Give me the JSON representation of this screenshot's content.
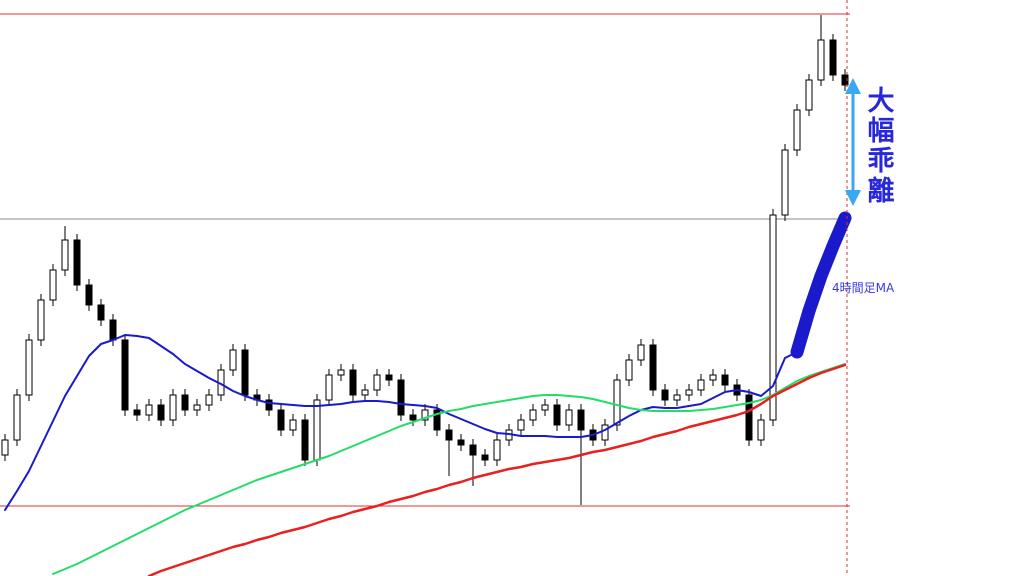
{
  "chart_data": {
    "type": "candlestick",
    "ylim": [
      0,
      576
    ],
    "open": [
      121,
      136,
      181,
      236,
      276,
      306,
      336,
      291,
      271,
      256,
      236,
      166,
      161,
      171,
      156,
      181,
      166,
      171,
      181,
      206,
      226,
      181,
      176,
      166,
      146,
      156,
      116,
      176,
      201,
      206,
      181,
      186,
      201,
      196,
      161,
      156,
      166,
      146,
      136,
      131,
      121,
      116,
      136,
      146,
      156,
      166,
      171,
      151,
      166,
      146,
      136,
      151,
      196,
      216,
      231,
      186,
      176,
      181,
      186,
      196,
      201,
      191,
      181,
      136,
      156,
      361,
      426,
      466,
      496,
      536,
      501
    ],
    "high": [
      142,
      187,
      242,
      282,
      312,
      350,
      342,
      297,
      277,
      262,
      242,
      172,
      177,
      177,
      187,
      187,
      177,
      187,
      212,
      232,
      232,
      187,
      182,
      172,
      162,
      162,
      182,
      207,
      212,
      212,
      192,
      207,
      207,
      202,
      167,
      172,
      172,
      152,
      142,
      137,
      127,
      142,
      152,
      162,
      172,
      177,
      177,
      172,
      172,
      152,
      157,
      202,
      222,
      237,
      237,
      192,
      187,
      192,
      202,
      207,
      207,
      197,
      187,
      162,
      367,
      432,
      472,
      502,
      561,
      542,
      507
    ],
    "low": [
      115,
      130,
      175,
      230,
      270,
      300,
      285,
      265,
      250,
      230,
      160,
      155,
      155,
      150,
      150,
      160,
      160,
      165,
      175,
      200,
      175,
      170,
      160,
      140,
      140,
      110,
      110,
      170,
      195,
      175,
      175,
      180,
      190,
      155,
      150,
      150,
      140,
      100,
      125,
      90,
      110,
      110,
      130,
      140,
      150,
      160,
      145,
      145,
      71,
      130,
      130,
      145,
      190,
      210,
      180,
      170,
      170,
      175,
      180,
      190,
      185,
      175,
      130,
      130,
      150,
      355,
      420,
      460,
      490,
      495,
      485
    ],
    "close": [
      136,
      181,
      236,
      276,
      306,
      336,
      291,
      271,
      256,
      236,
      166,
      161,
      171,
      156,
      181,
      166,
      171,
      181,
      206,
      226,
      181,
      176,
      166,
      146,
      156,
      116,
      176,
      201,
      206,
      181,
      186,
      201,
      196,
      161,
      156,
      166,
      146,
      136,
      131,
      121,
      116,
      136,
      146,
      156,
      166,
      171,
      151,
      166,
      146,
      136,
      151,
      196,
      216,
      231,
      186,
      176,
      181,
      186,
      196,
      201,
      191,
      181,
      136,
      156,
      361,
      426,
      466,
      496,
      536,
      501,
      491
    ],
    "up_color": "#ffffff",
    "down_color": "#000000",
    "series": [
      {
        "color": "#1a1acc",
        "width": 2,
        "values": [
          66,
          85,
          105,
          130,
          155,
          180,
          200,
          220,
          232,
          236,
          241,
          240,
          238,
          230,
          222,
          212,
          205,
          198,
          192,
          185,
          180,
          176,
          173,
          172,
          171,
          170,
          170,
          171,
          172,
          174,
          175,
          175,
          174,
          172,
          171,
          170,
          168,
          162,
          157,
          152,
          147,
          143,
          142,
          140,
          140,
          140,
          139,
          139,
          139,
          141,
          146,
          153,
          160,
          166,
          169,
          168,
          168,
          170,
          172,
          178,
          184,
          186,
          184,
          180,
          190,
          218,
          224,
          null,
          null,
          null,
          null
        ]
      },
      {
        "color": "#22dd66",
        "width": 2,
        "values": [
          null,
          null,
          null,
          null,
          2,
          7,
          12,
          18,
          24,
          30,
          36,
          42,
          48,
          54,
          60,
          66,
          71,
          76,
          81,
          86,
          91,
          96,
          100,
          104,
          108,
          112,
          116,
          120,
          125,
          130,
          135,
          140,
          145,
          150,
          154,
          158,
          162,
          165,
          167,
          170,
          172,
          174,
          176,
          178,
          180,
          181,
          181,
          180,
          179,
          177,
          174,
          171,
          168,
          166,
          165,
          165,
          165,
          165,
          166,
          167,
          169,
          171,
          173,
          176,
          181,
          188,
          195,
          200,
          204,
          208,
          212
        ]
      },
      {
        "color": "#e82020",
        "width": 2.5,
        "values": [
          null,
          null,
          null,
          null,
          null,
          null,
          null,
          null,
          null,
          null,
          null,
          null,
          0,
          5,
          9,
          13,
          17,
          21,
          25,
          29,
          32,
          36,
          39,
          43,
          46,
          49,
          53,
          57,
          60,
          64,
          67,
          70,
          74,
          77,
          80,
          84,
          87,
          91,
          94,
          98,
          101,
          104,
          107,
          109,
          112,
          114,
          116,
          118,
          121,
          124,
          126,
          129,
          132,
          135,
          139,
          142,
          145,
          149,
          152,
          155,
          158,
          161,
          165,
          172,
          180,
          186,
          192,
          198,
          203,
          207,
          211
        ]
      },
      {
        "color": "#1a1acc",
        "width": 13,
        "values": [
          null,
          null,
          null,
          null,
          null,
          null,
          null,
          null,
          null,
          null,
          null,
          null,
          null,
          null,
          null,
          null,
          null,
          null,
          null,
          null,
          null,
          null,
          null,
          null,
          null,
          null,
          null,
          null,
          null,
          null,
          null,
          null,
          null,
          null,
          null,
          null,
          null,
          null,
          null,
          null,
          null,
          null,
          null,
          null,
          null,
          null,
          null,
          null,
          null,
          null,
          null,
          null,
          null,
          null,
          null,
          null,
          null,
          null,
          null,
          null,
          null,
          null,
          null,
          null,
          null,
          null,
          224,
          265,
          300,
          330,
          358
        ]
      }
    ],
    "hlines": [
      {
        "value": 562,
        "color": "#e03030"
      },
      {
        "value": 357,
        "color": "#888888"
      },
      {
        "value": 70,
        "color": "#e03030"
      }
    ],
    "annotations": [
      "大幅乖離",
      "4時間足MA"
    ]
  }
}
